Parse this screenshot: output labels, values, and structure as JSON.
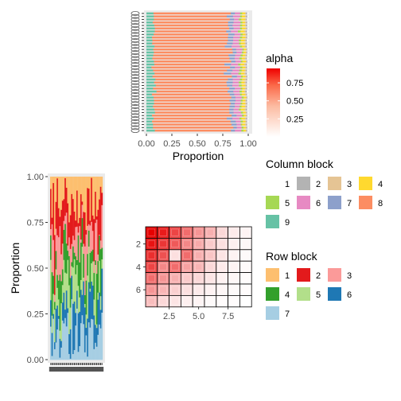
{
  "chart_data": [
    {
      "id": "top",
      "type": "bar",
      "orientation": "horizontal",
      "stacked": true,
      "xlabel": "Proportion",
      "xlim": [
        0,
        1
      ],
      "x_ticks": [
        "0.00",
        "0.25",
        "0.50",
        "0.75",
        "1.00"
      ],
      "n_rows": 40,
      "stack_order": [
        "9",
        "8",
        "7",
        "6",
        "5",
        "4",
        "3",
        "2",
        "1"
      ],
      "row_template": {
        "9": 0.07,
        "8": 0.74,
        "7": 0.05,
        "6": 0.06,
        "5": 0.02,
        "4": 0.03,
        "3": 0.01,
        "2": 0.01,
        "1": 0.01
      }
    },
    {
      "id": "left",
      "type": "bar",
      "orientation": "vertical",
      "stacked": true,
      "ylabel": "Proportion",
      "ylim": [
        0,
        1
      ],
      "y_ticks": [
        "0.00",
        "0.25",
        "0.50",
        "0.75",
        "1.00"
      ],
      "n_cols": 40,
      "stack_order": [
        "7",
        "6",
        "5",
        "4",
        "3",
        "2",
        "1"
      ]
    },
    {
      "id": "heatmap",
      "type": "heatmap",
      "n_cols": 9,
      "n_rows": 7,
      "x_ticks": [
        "2.5",
        "5.0",
        "7.5"
      ],
      "y_ticks": [
        "2",
        "4",
        "6"
      ],
      "values": [
        [
          0.95,
          0.85,
          0.7,
          0.55,
          0.4,
          0.3,
          0.15,
          0.08,
          0.04
        ],
        [
          0.88,
          0.75,
          0.62,
          0.45,
          0.32,
          0.2,
          0.12,
          0.06,
          0.03
        ],
        [
          0.78,
          0.65,
          0.12,
          0.55,
          0.3,
          0.22,
          0.1,
          0.05,
          0.02
        ],
        [
          0.7,
          0.45,
          0.55,
          0.35,
          0.28,
          0.15,
          0.08,
          0.04,
          0.02
        ],
        [
          0.55,
          0.4,
          0.3,
          0.2,
          0.15,
          0.1,
          0.05,
          0.03,
          0.01
        ],
        [
          0.4,
          0.28,
          0.18,
          0.12,
          0.08,
          0.05,
          0.03,
          0.02,
          0.01
        ],
        [
          0.25,
          0.15,
          0.1,
          0.06,
          0.04,
          0.02,
          0.01,
          0.01,
          0.0
        ]
      ]
    }
  ],
  "legends": {
    "alpha": {
      "title": "alpha",
      "labels": [
        "0.75",
        "0.50",
        "0.25"
      ],
      "colors": [
        "#ffffff",
        "#fc9272",
        "#ef3b2c",
        "#e60000"
      ]
    },
    "column_block": {
      "title": "Column block",
      "items": [
        {
          "label": "1",
          "color": "#ffffff"
        },
        {
          "label": "2",
          "color": "#b3b3b3"
        },
        {
          "label": "3",
          "color": "#e5c494"
        },
        {
          "label": "4",
          "color": "#ffd92f"
        },
        {
          "label": "5",
          "color": "#a6d854"
        },
        {
          "label": "6",
          "color": "#e78ac3"
        },
        {
          "label": "7",
          "color": "#8da0cb"
        },
        {
          "label": "8",
          "color": "#fc8d62"
        },
        {
          "label": "9",
          "color": "#66c2a5"
        }
      ]
    },
    "row_block": {
      "title": "Row block",
      "items": [
        {
          "label": "1",
          "color": "#fdbf6f"
        },
        {
          "label": "2",
          "color": "#e31a1c"
        },
        {
          "label": "3",
          "color": "#fb9a99"
        },
        {
          "label": "4",
          "color": "#33a02c"
        },
        {
          "label": "5",
          "color": "#b2df8a"
        },
        {
          "label": "6",
          "color": "#1f78b4"
        },
        {
          "label": "7",
          "color": "#a6cee3"
        }
      ]
    }
  }
}
